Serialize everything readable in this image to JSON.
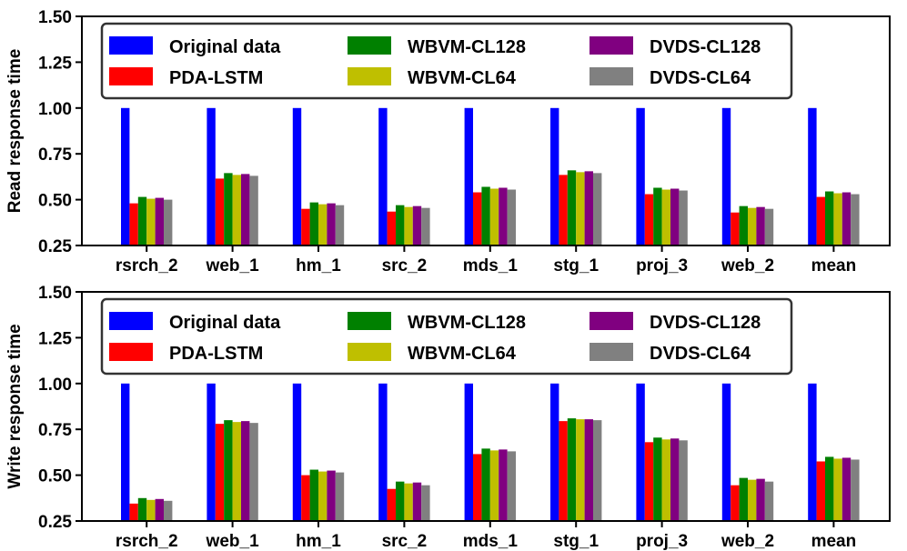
{
  "chart_data": [
    {
      "type": "bar",
      "ylabel": "Read response time",
      "xlabel": "",
      "title": "",
      "ylim": [
        0.25,
        1.5
      ],
      "yticks": [
        "0.25",
        "0.50",
        "0.75",
        "1.00",
        "1.25",
        "1.50"
      ],
      "categories": [
        "rsrch_2",
        "web_1",
        "hm_1",
        "src_2",
        "mds_1",
        "stg_1",
        "proj_3",
        "web_2",
        "mean"
      ],
      "legend": {
        "placement": "top-left",
        "columns": 3
      },
      "series": [
        {
          "name": "Original data",
          "color": "#0000ff",
          "values": [
            1.0,
            1.0,
            1.0,
            1.0,
            1.0,
            1.0,
            1.0,
            1.0,
            1.0
          ]
        },
        {
          "name": "PDA-LSTM",
          "color": "#ff0000",
          "values": [
            0.48,
            0.615,
            0.45,
            0.435,
            0.54,
            0.635,
            0.53,
            0.43,
            0.515
          ]
        },
        {
          "name": "WBVM-CL128",
          "color": "#008000",
          "values": [
            0.515,
            0.645,
            0.485,
            0.47,
            0.57,
            0.66,
            0.565,
            0.465,
            0.545
          ]
        },
        {
          "name": "WBVM-CL64",
          "color": "#bfbf00",
          "values": [
            0.505,
            0.635,
            0.475,
            0.46,
            0.56,
            0.65,
            0.555,
            0.455,
            0.535
          ]
        },
        {
          "name": "DVDS-CL128",
          "color": "#800080",
          "values": [
            0.51,
            0.64,
            0.48,
            0.465,
            0.565,
            0.655,
            0.56,
            0.46,
            0.54
          ]
        },
        {
          "name": "DVDS-CL64",
          "color": "#808080",
          "values": [
            0.5,
            0.63,
            0.47,
            0.455,
            0.555,
            0.645,
            0.55,
            0.45,
            0.53
          ]
        }
      ]
    },
    {
      "type": "bar",
      "ylabel": "Write response time",
      "xlabel": "",
      "title": "",
      "ylim": [
        0.25,
        1.5
      ],
      "yticks": [
        "0.25",
        "0.50",
        "0.75",
        "1.00",
        "1.25",
        "1.50"
      ],
      "categories": [
        "rsrch_2",
        "web_1",
        "hm_1",
        "src_2",
        "mds_1",
        "stg_1",
        "proj_3",
        "web_2",
        "mean"
      ],
      "legend": {
        "placement": "top-left",
        "columns": 3
      },
      "series": [
        {
          "name": "Original data",
          "color": "#0000ff",
          "values": [
            1.0,
            1.0,
            1.0,
            1.0,
            1.0,
            1.0,
            1.0,
            1.0,
            1.0
          ]
        },
        {
          "name": "PDA-LSTM",
          "color": "#ff0000",
          "values": [
            0.345,
            0.78,
            0.5,
            0.425,
            0.615,
            0.795,
            0.68,
            0.445,
            0.575
          ]
        },
        {
          "name": "WBVM-CL128",
          "color": "#008000",
          "values": [
            0.375,
            0.8,
            0.53,
            0.465,
            0.645,
            0.81,
            0.705,
            0.485,
            0.6
          ]
        },
        {
          "name": "WBVM-CL64",
          "color": "#bfbf00",
          "values": [
            0.365,
            0.79,
            0.52,
            0.455,
            0.635,
            0.805,
            0.695,
            0.475,
            0.59
          ]
        },
        {
          "name": "DVDS-CL128",
          "color": "#800080",
          "values": [
            0.37,
            0.795,
            0.525,
            0.46,
            0.64,
            0.805,
            0.7,
            0.48,
            0.595
          ]
        },
        {
          "name": "DVDS-CL64",
          "color": "#808080",
          "values": [
            0.36,
            0.785,
            0.515,
            0.445,
            0.63,
            0.8,
            0.69,
            0.465,
            0.585
          ]
        }
      ]
    }
  ]
}
